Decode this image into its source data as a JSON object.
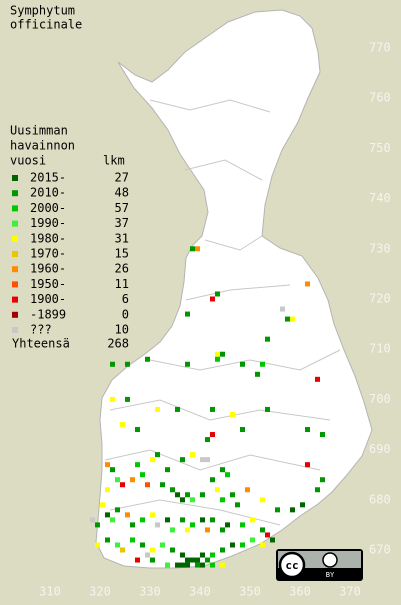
{
  "title_lines": [
    "Symphytum",
    "officinale"
  ],
  "legend": {
    "header_lines": [
      "Uusimman",
      "havainnon",
      "vuosi"
    ],
    "count_header": "lkm",
    "items": [
      {
        "label": "2015-",
        "count": 27,
        "color": "#006400"
      },
      {
        "label": "2010-",
        "count": 48,
        "color": "#009600"
      },
      {
        "label": "2000-",
        "count": 57,
        "color": "#00c800"
      },
      {
        "label": "1990-",
        "count": 37,
        "color": "#3cf03c"
      },
      {
        "label": "1980-",
        "count": 31,
        "color": "#ffff00"
      },
      {
        "label": "1970-",
        "count": 15,
        "color": "#e6c800"
      },
      {
        "label": "1960-",
        "count": 26,
        "color": "#ff8c00"
      },
      {
        "label": "1950-",
        "count": 11,
        "color": "#ff5000"
      },
      {
        "label": "1900-",
        "count": 6,
        "color": "#e60000"
      },
      {
        "label": "-1899",
        "count": 0,
        "color": "#a00000"
      },
      {
        "label": "???",
        "count": 10,
        "color": "#c8c8c8"
      }
    ],
    "total_label": "Yhteensä",
    "total": 268
  },
  "y_labels": [
    770,
    760,
    750,
    740,
    730,
    720,
    710,
    700,
    690,
    680,
    670
  ],
  "x_labels": [
    310,
    320,
    330,
    340,
    350,
    360,
    370
  ],
  "license": {
    "cc": "cc",
    "by": "BY"
  },
  "squares": [
    [
      338,
      730,
      1
    ],
    [
      339,
      730,
      6
    ],
    [
      343,
      721,
      1
    ],
    [
      342,
      720,
      8
    ],
    [
      356,
      718,
      10
    ],
    [
      357,
      716,
      1
    ],
    [
      358,
      716,
      4
    ],
    [
      361,
      723,
      6
    ],
    [
      337,
      717,
      1
    ],
    [
      353,
      712,
      1
    ],
    [
      343,
      709,
      4
    ],
    [
      343,
      708,
      2
    ],
    [
      344,
      709,
      1
    ],
    [
      329,
      708,
      1
    ],
    [
      325,
      707,
      1
    ],
    [
      322,
      707,
      1
    ],
    [
      337,
      707,
      1
    ],
    [
      348,
      707,
      1
    ],
    [
      351,
      705,
      1
    ],
    [
      363,
      704,
      8
    ],
    [
      352,
      707,
      2
    ],
    [
      322,
      700,
      4
    ],
    [
      325,
      700,
      1
    ],
    [
      335,
      698,
      1
    ],
    [
      331,
      698,
      4
    ],
    [
      324,
      695,
      4
    ],
    [
      327,
      694,
      1
    ],
    [
      342,
      698,
      1
    ],
    [
      346,
      697,
      4
    ],
    [
      353,
      698,
      1
    ],
    [
      342,
      693,
      8
    ],
    [
      348,
      694,
      1
    ],
    [
      341,
      692,
      1
    ],
    [
      361,
      694,
      1
    ],
    [
      364,
      693,
      1
    ],
    [
      361,
      687,
      8
    ],
    [
      364,
      684,
      1
    ],
    [
      363,
      682,
      1
    ],
    [
      340,
      688,
      10
    ],
    [
      341,
      688,
      10
    ],
    [
      338,
      689,
      4
    ],
    [
      336,
      688,
      1
    ],
    [
      344,
      686,
      1
    ],
    [
      345,
      685,
      2
    ],
    [
      333,
      686,
      1
    ],
    [
      330,
      688,
      4
    ],
    [
      331,
      689,
      1
    ],
    [
      327,
      687,
      2
    ],
    [
      321,
      687,
      6
    ],
    [
      322,
      686,
      1
    ],
    [
      323,
      684,
      3
    ],
    [
      321,
      682,
      4
    ],
    [
      324,
      683,
      8
    ],
    [
      326,
      684,
      6
    ],
    [
      328,
      685,
      2
    ],
    [
      329,
      683,
      7
    ],
    [
      332,
      683,
      1
    ],
    [
      334,
      682,
      1
    ],
    [
      335,
      681,
      0
    ],
    [
      336,
      680,
      0
    ],
    [
      337,
      681,
      1
    ],
    [
      338,
      680,
      3
    ],
    [
      340,
      681,
      1
    ],
    [
      342,
      684,
      1
    ],
    [
      343,
      682,
      4
    ],
    [
      344,
      680,
      2
    ],
    [
      346,
      681,
      1
    ],
    [
      347,
      679,
      1
    ],
    [
      349,
      682,
      6
    ],
    [
      352,
      680,
      4
    ],
    [
      355,
      678,
      1
    ],
    [
      358,
      678,
      0
    ],
    [
      360,
      679,
      0
    ],
    [
      320,
      679,
      4
    ],
    [
      318,
      676,
      10
    ],
    [
      319,
      675,
      1
    ],
    [
      321,
      677,
      0
    ],
    [
      322,
      676,
      3
    ],
    [
      323,
      678,
      1
    ],
    [
      325,
      677,
      6
    ],
    [
      326,
      675,
      1
    ],
    [
      328,
      676,
      2
    ],
    [
      330,
      677,
      4
    ],
    [
      331,
      675,
      10
    ],
    [
      333,
      676,
      0
    ],
    [
      334,
      674,
      3
    ],
    [
      336,
      676,
      1
    ],
    [
      337,
      674,
      4
    ],
    [
      338,
      675,
      2
    ],
    [
      340,
      676,
      0
    ],
    [
      341,
      674,
      6
    ],
    [
      342,
      676,
      1
    ],
    [
      344,
      674,
      1
    ],
    [
      345,
      675,
      0
    ],
    [
      348,
      675,
      2
    ],
    [
      350,
      676,
      4
    ],
    [
      352,
      674,
      1
    ],
    [
      353,
      673,
      8
    ],
    [
      319,
      671,
      4
    ],
    [
      321,
      672,
      1
    ],
    [
      323,
      671,
      3
    ],
    [
      324,
      670,
      5
    ],
    [
      326,
      672,
      2
    ],
    [
      328,
      671,
      1
    ],
    [
      330,
      670,
      4
    ],
    [
      332,
      671,
      3
    ],
    [
      334,
      670,
      1
    ],
    [
      336,
      669,
      0
    ],
    [
      337,
      668,
      0
    ],
    [
      338,
      668,
      0
    ],
    [
      339,
      668,
      0
    ],
    [
      340,
      669,
      0
    ],
    [
      341,
      668,
      1
    ],
    [
      342,
      669,
      2
    ],
    [
      344,
      670,
      1
    ],
    [
      346,
      671,
      0
    ],
    [
      348,
      671,
      2
    ],
    [
      350,
      672,
      3
    ],
    [
      352,
      671,
      4
    ],
    [
      354,
      672,
      0
    ],
    [
      333,
      667,
      3
    ],
    [
      335,
      667,
      0
    ],
    [
      336,
      667,
      0
    ],
    [
      337,
      667,
      0
    ],
    [
      339,
      667,
      1
    ],
    [
      340,
      667,
      0
    ],
    [
      342,
      667,
      2
    ],
    [
      344,
      667,
      4
    ],
    [
      330,
      668,
      1
    ],
    [
      329,
      669,
      10
    ],
    [
      327,
      668,
      8
    ]
  ]
}
